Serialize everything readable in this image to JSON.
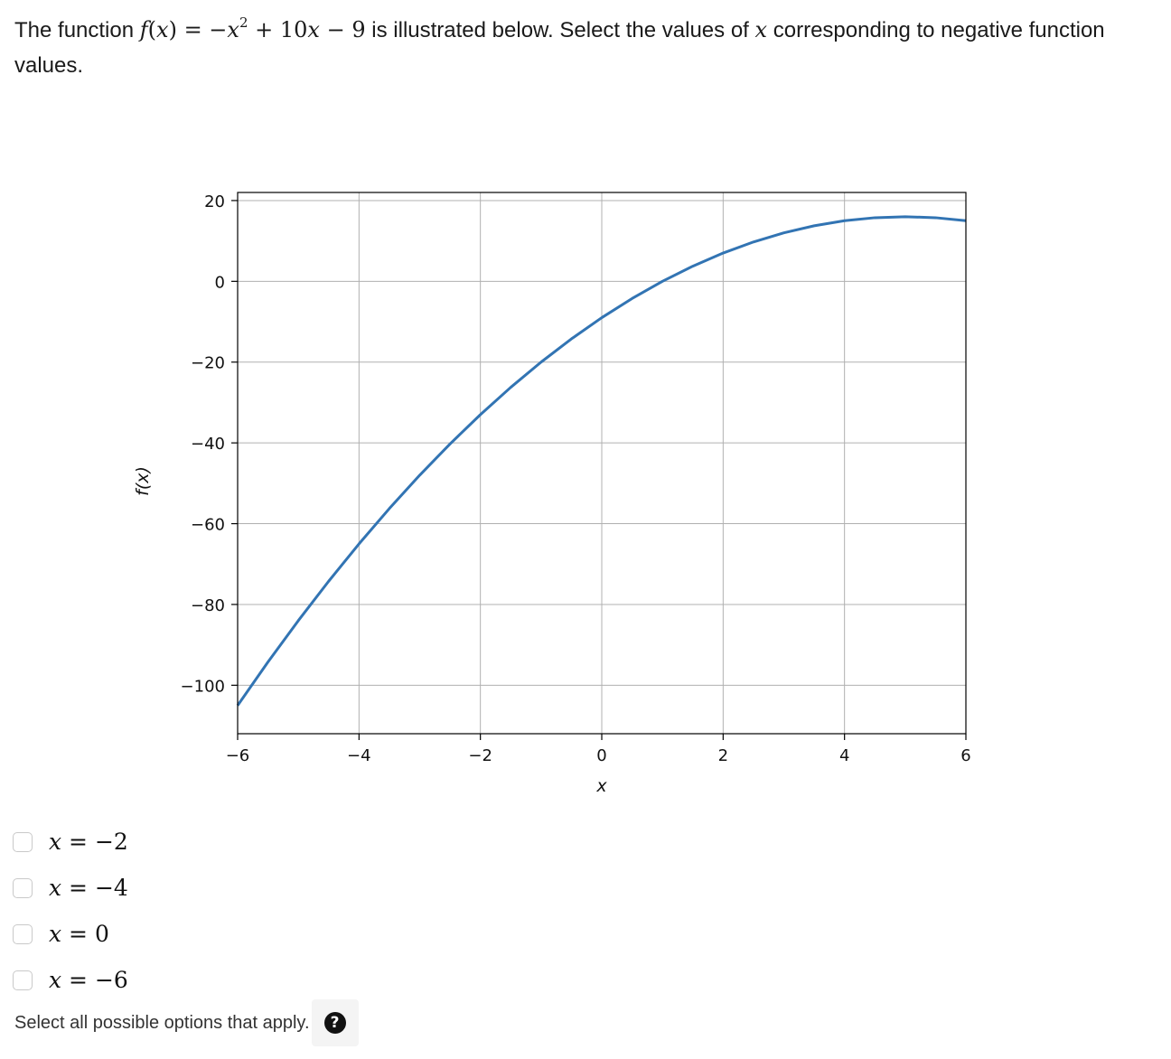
{
  "question": {
    "intro": "The function ",
    "fn_name": "f",
    "fn_var": "x",
    "rhs_a": " = −",
    "rhs_var1": "x",
    "rhs_exp": "2",
    "rhs_b": " + 10",
    "rhs_var2": "x",
    "rhs_c": " − 9",
    "mid": " is illustrated below. Select the values of ",
    "var": "x",
    "end": " corresponding to negative function values."
  },
  "chart_data": {
    "type": "line",
    "title": "",
    "xlabel": "x",
    "ylabel": "f(x)",
    "xlim": [
      -6,
      6
    ],
    "ylim": [
      -112,
      22
    ],
    "xticks": [
      -6,
      -4,
      -2,
      0,
      2,
      4,
      6
    ],
    "yticks": [
      20,
      0,
      -20,
      -40,
      -60,
      -80,
      -100
    ],
    "xtick_labels": [
      "−6",
      "−4",
      "−2",
      "0",
      "2",
      "4",
      "6"
    ],
    "ytick_labels": [
      "20",
      "0",
      "−20",
      "−40",
      "−60",
      "−80",
      "−100"
    ],
    "grid": true,
    "series": [
      {
        "color": "#3274b3",
        "x": [
          -6,
          -5.5,
          -5,
          -4.5,
          -4,
          -3.5,
          -3,
          -2.5,
          -2,
          -1.5,
          -1,
          -0.5,
          0,
          0.5,
          1,
          1.5,
          2,
          2.5,
          3,
          3.5,
          4,
          4.5,
          5,
          5.5,
          6
        ],
        "y": [
          -105,
          -94.25,
          -84,
          -74.25,
          -65,
          -56.25,
          -48,
          -40.25,
          -33,
          -26.25,
          -20,
          -14.25,
          -9,
          -4.25,
          0,
          3.75,
          7,
          9.75,
          12,
          13.75,
          15,
          15.75,
          16,
          15.75,
          15
        ]
      }
    ]
  },
  "options": [
    {
      "var": "x",
      "rhs": " = −2",
      "checked": false
    },
    {
      "var": "x",
      "rhs": " = −4",
      "checked": false
    },
    {
      "var": "x",
      "rhs": " = 0",
      "checked": false
    },
    {
      "var": "x",
      "rhs": " = −6",
      "checked": false
    }
  ],
  "hint": {
    "text": "Select all possible options that apply.",
    "help_icon": "question-circle-icon",
    "help_symbol": "?"
  }
}
